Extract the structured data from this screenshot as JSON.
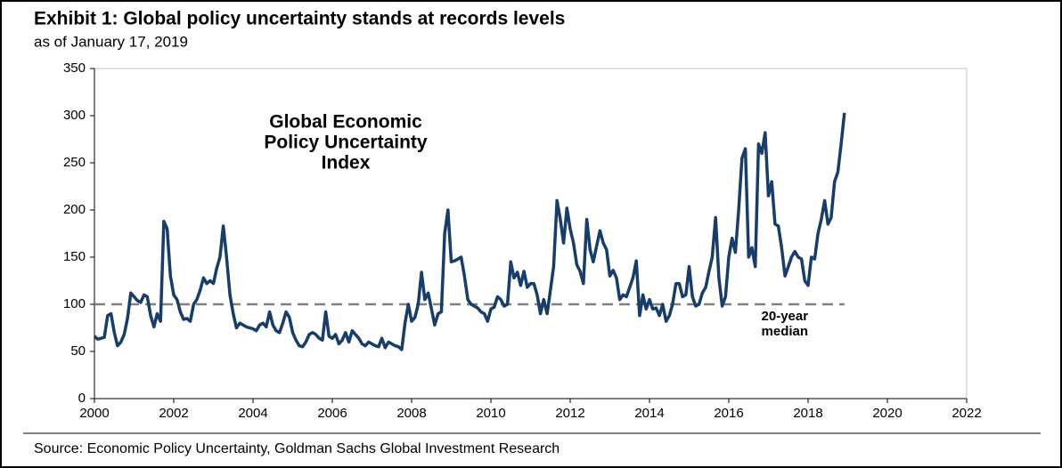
{
  "chart_data": {
    "type": "line",
    "title": "Exhibit 1: Global policy uncertainty stands at records levels",
    "subtitle": "as of January 17, 2019",
    "source": "Source: Economic Policy Uncertainty, Goldman Sachs Global Investment Research",
    "series_label": [
      "Global Economic",
      "Policy Uncertainty",
      "Index"
    ],
    "color": "#173d6a",
    "reference_line": {
      "value": 100,
      "label": [
        "20-year",
        "median"
      ],
      "color": "#808080"
    },
    "xlim": [
      2000,
      2022
    ],
    "xticks": [
      2000,
      2002,
      2004,
      2006,
      2008,
      2010,
      2012,
      2014,
      2016,
      2018,
      2020,
      2022
    ],
    "ylim": [
      0,
      350
    ],
    "yticks": [
      0,
      50,
      100,
      150,
      200,
      250,
      300,
      350
    ],
    "x": [
      2000,
      2000.083,
      2000.167,
      2000.25,
      2000.333,
      2000.417,
      2000.5,
      2000.583,
      2000.667,
      2000.75,
      2000.833,
      2000.917,
      2001,
      2001.083,
      2001.167,
      2001.25,
      2001.333,
      2001.417,
      2001.5,
      2001.583,
      2001.667,
      2001.75,
      2001.833,
      2001.917,
      2002,
      2002.083,
      2002.167,
      2002.25,
      2002.333,
      2002.417,
      2002.5,
      2002.583,
      2002.667,
      2002.75,
      2002.833,
      2002.917,
      2003,
      2003.083,
      2003.167,
      2003.25,
      2003.333,
      2003.417,
      2003.5,
      2003.583,
      2003.667,
      2003.75,
      2003.833,
      2003.917,
      2004,
      2004.083,
      2004.167,
      2004.25,
      2004.333,
      2004.417,
      2004.5,
      2004.583,
      2004.667,
      2004.75,
      2004.833,
      2004.917,
      2005,
      2005.083,
      2005.167,
      2005.25,
      2005.333,
      2005.417,
      2005.5,
      2005.583,
      2005.667,
      2005.75,
      2005.833,
      2005.917,
      2006,
      2006.083,
      2006.167,
      2006.25,
      2006.333,
      2006.417,
      2006.5,
      2006.583,
      2006.667,
      2006.75,
      2006.833,
      2006.917,
      2007,
      2007.083,
      2007.167,
      2007.25,
      2007.333,
      2007.417,
      2007.5,
      2007.583,
      2007.667,
      2007.75,
      2007.833,
      2007.917,
      2008,
      2008.083,
      2008.167,
      2008.25,
      2008.333,
      2008.417,
      2008.5,
      2008.583,
      2008.667,
      2008.75,
      2008.833,
      2008.917,
      2009,
      2009.083,
      2009.167,
      2009.25,
      2009.333,
      2009.417,
      2009.5,
      2009.583,
      2009.667,
      2009.75,
      2009.833,
      2009.917,
      2010,
      2010.083,
      2010.167,
      2010.25,
      2010.333,
      2010.417,
      2010.5,
      2010.583,
      2010.667,
      2010.75,
      2010.833,
      2010.917,
      2011,
      2011.083,
      2011.167,
      2011.25,
      2011.333,
      2011.417,
      2011.5,
      2011.583,
      2011.667,
      2011.75,
      2011.833,
      2011.917,
      2012,
      2012.083,
      2012.167,
      2012.25,
      2012.333,
      2012.417,
      2012.5,
      2012.583,
      2012.667,
      2012.75,
      2012.833,
      2012.917,
      2013,
      2013.083,
      2013.167,
      2013.25,
      2013.333,
      2013.417,
      2013.5,
      2013.583,
      2013.667,
      2013.75,
      2013.833,
      2013.917,
      2014,
      2014.083,
      2014.167,
      2014.25,
      2014.333,
      2014.417,
      2014.5,
      2014.583,
      2014.667,
      2014.75,
      2014.833,
      2014.917,
      2015,
      2015.083,
      2015.167,
      2015.25,
      2015.333,
      2015.417,
      2015.5,
      2015.583,
      2015.667,
      2015.75,
      2015.833,
      2015.917,
      2016,
      2016.083,
      2016.167,
      2016.25,
      2016.333,
      2016.417,
      2016.5,
      2016.583,
      2016.667,
      2016.75,
      2016.833,
      2016.917,
      2017,
      2017.083,
      2017.167,
      2017.25,
      2017.333,
      2017.417,
      2017.5,
      2017.583,
      2017.667,
      2017.75,
      2017.833,
      2017.917,
      2018,
      2018.083,
      2018.167,
      2018.25,
      2018.333,
      2018.417,
      2018.5,
      2018.583,
      2018.667,
      2018.75,
      2018.833,
      2018.917
    ],
    "values": [
      66,
      63,
      64,
      65,
      88,
      90,
      70,
      56,
      60,
      68,
      85,
      112,
      108,
      104,
      102,
      110,
      108,
      88,
      76,
      90,
      82,
      188,
      180,
      130,
      110,
      105,
      92,
      84,
      85,
      82,
      100,
      105,
      115,
      128,
      122,
      125,
      122,
      138,
      150,
      183,
      150,
      110,
      90,
      75,
      80,
      78,
      76,
      75,
      74,
      72,
      78,
      80,
      76,
      92,
      78,
      72,
      70,
      80,
      92,
      86,
      70,
      62,
      56,
      55,
      60,
      68,
      70,
      68,
      64,
      62,
      92,
      66,
      64,
      68,
      58,
      62,
      70,
      60,
      72,
      68,
      64,
      58,
      56,
      60,
      58,
      56,
      55,
      64,
      54,
      60,
      58,
      56,
      55,
      52,
      80,
      100,
      82,
      86,
      100,
      134,
      105,
      112,
      95,
      78,
      90,
      92,
      175,
      200,
      145,
      146,
      148,
      150,
      130,
      105,
      100,
      98,
      96,
      92,
      90,
      82,
      95,
      97,
      108,
      105,
      98,
      100,
      145,
      128,
      134,
      120,
      135,
      118,
      122,
      122,
      110,
      90,
      105,
      90,
      115,
      140,
      210,
      190,
      165,
      202,
      180,
      165,
      142,
      135,
      122,
      190,
      158,
      145,
      162,
      178,
      165,
      158,
      130,
      136,
      128,
      105,
      110,
      108,
      118,
      128,
      146,
      88,
      110,
      95,
      105,
      95,
      96,
      88,
      100,
      82,
      88,
      100,
      122,
      122,
      108,
      110,
      140,
      108,
      98,
      100,
      112,
      118,
      135,
      150,
      192,
      128,
      98,
      108,
      150,
      170,
      155,
      200,
      255,
      265,
      150,
      160,
      140,
      270,
      260,
      282,
      215,
      230,
      185,
      183,
      160,
      130,
      140,
      150,
      156,
      150,
      148,
      125,
      120,
      150,
      148,
      175,
      190,
      210,
      185,
      192,
      230,
      240,
      270,
      303
    ]
  }
}
